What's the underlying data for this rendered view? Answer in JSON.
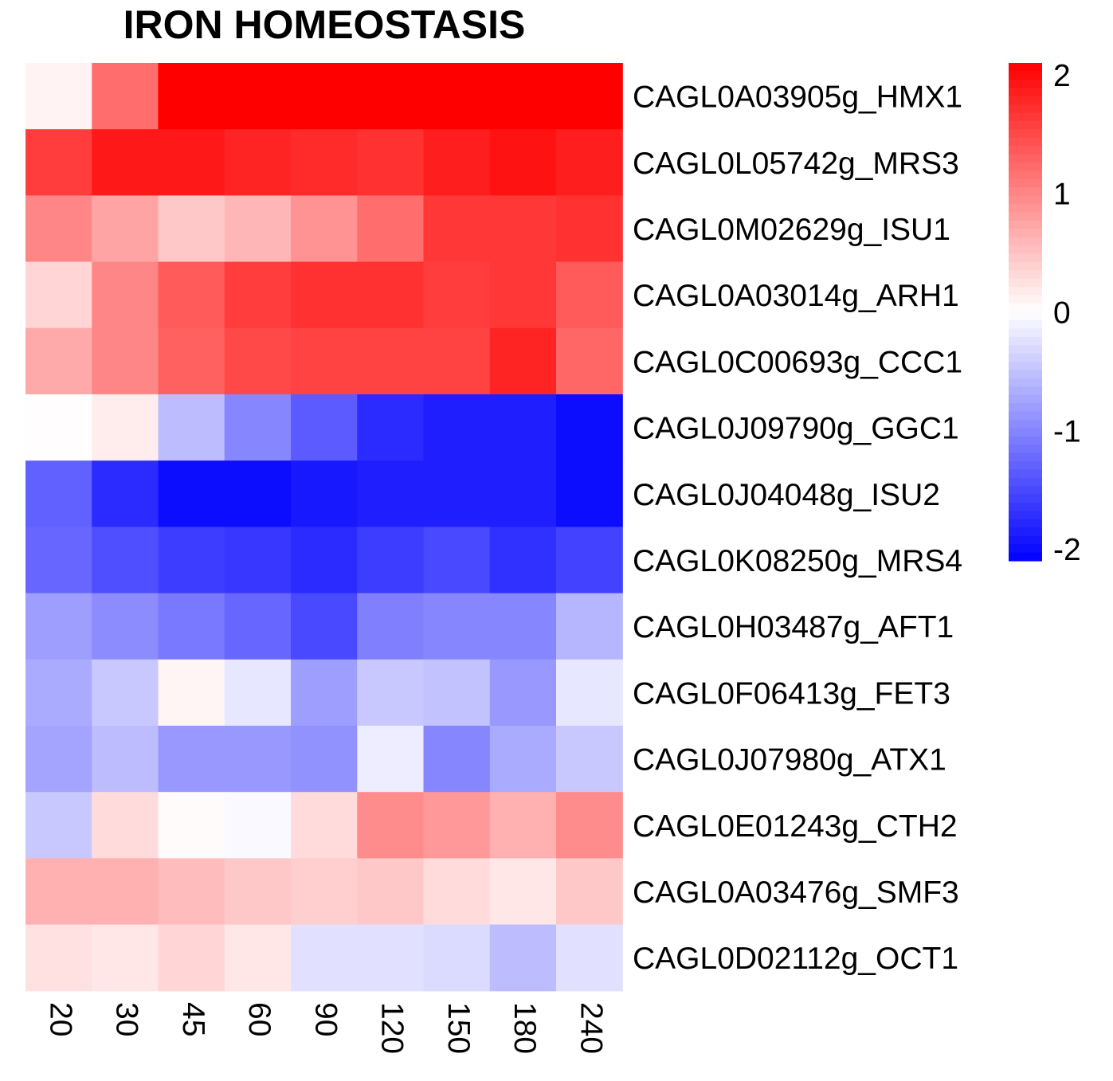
{
  "chart_data": {
    "type": "heatmap",
    "title": "IRON HOMEOSTASIS",
    "columns": [
      "20",
      "30",
      "45",
      "60",
      "90",
      "120",
      "150",
      "180",
      "240"
    ],
    "rows": [
      "CAGL0A03905g_HMX1",
      "CAGL0L05742g_MRS3",
      "CAGL0M02629g_ISU1",
      "CAGL0A03014g_ARH1",
      "CAGL0C00693g_CCC1",
      "CAGL0J09790g_GGC1",
      "CAGL0J04048g_ISU2",
      "CAGL0K08250g_MRS4",
      "CAGL0H03487g_AFT1",
      "CAGL0F06413g_FET3",
      "CAGL0J07980g_ATX1",
      "CAGL0E01243g_CTH2",
      "CAGL0A03476g_SMF3",
      "CAGL0D02112g_OCT1"
    ],
    "values": [
      [
        0.1,
        1.2,
        2.1,
        2.1,
        2.1,
        2.1,
        2.1,
        2.1,
        2.1
      ],
      [
        1.6,
        1.9,
        1.9,
        1.8,
        1.75,
        1.7,
        1.85,
        1.95,
        1.85
      ],
      [
        1.0,
        0.75,
        0.45,
        0.6,
        0.9,
        1.2,
        1.65,
        1.65,
        1.7
      ],
      [
        0.35,
        1.0,
        1.35,
        1.6,
        1.7,
        1.7,
        1.6,
        1.65,
        1.35
      ],
      [
        0.7,
        1.0,
        1.3,
        1.5,
        1.55,
        1.55,
        1.55,
        1.8,
        1.25
      ],
      [
        0.02,
        0.15,
        -0.55,
        -1.0,
        -1.35,
        -1.75,
        -1.85,
        -1.85,
        -2.0
      ],
      [
        -1.3,
        -1.75,
        -2.0,
        -2.0,
        -1.9,
        -1.85,
        -1.85,
        -1.85,
        -2.0
      ],
      [
        -1.25,
        -1.45,
        -1.6,
        -1.65,
        -1.75,
        -1.6,
        -1.5,
        -1.7,
        -1.55
      ],
      [
        -0.8,
        -0.95,
        -1.1,
        -1.25,
        -1.5,
        -1.05,
        -1.0,
        -1.0,
        -0.6
      ],
      [
        -0.7,
        -0.45,
        0.08,
        -0.2,
        -0.8,
        -0.45,
        -0.5,
        -0.85,
        -0.2
      ],
      [
        -0.75,
        -0.55,
        -0.85,
        -0.85,
        -0.9,
        -0.15,
        -1.0,
        -0.7,
        -0.45
      ],
      [
        -0.45,
        0.3,
        0.03,
        -0.05,
        0.3,
        0.95,
        0.85,
        0.65,
        0.95
      ],
      [
        0.65,
        0.65,
        0.55,
        0.45,
        0.4,
        0.45,
        0.3,
        0.2,
        0.45
      ],
      [
        0.25,
        0.2,
        0.35,
        0.2,
        -0.25,
        -0.25,
        -0.3,
        -0.55,
        -0.25
      ]
    ],
    "color_scale": {
      "low": "#0000ff",
      "mid": "#ffffff",
      "high": "#ff0000",
      "range": [
        -2.1,
        2.1
      ],
      "ticks": [
        2,
        1,
        0,
        -1,
        -2
      ]
    },
    "legend_placement": "top-right",
    "grid": false
  }
}
